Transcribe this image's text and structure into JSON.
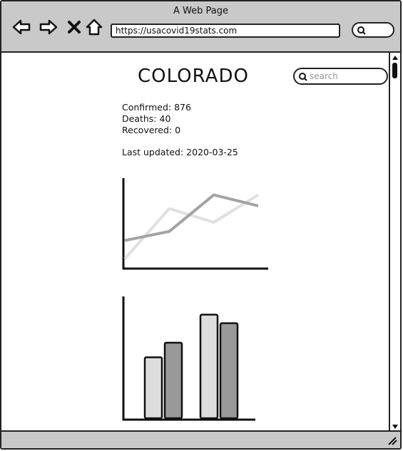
{
  "window": {
    "title": "A Web Page",
    "url": "https://usacovid19stats.com"
  },
  "page": {
    "title": "COLORADO",
    "search_placeholder": "search",
    "confirmed": "Confirmed: 876",
    "deaths": "Deaths: 40",
    "recovered": "Recovered: 0",
    "last_updated": "Last updated: 2020-03-25"
  },
  "icons": {
    "back": "arrow-left-icon",
    "forward": "arrow-right-icon",
    "close": "close-icon",
    "home": "home-icon",
    "search": "search-icon"
  },
  "colors": {
    "frame": "#c9c9c9",
    "series_light": "#e0e0e0",
    "series_dark": "#a3a3a3",
    "bar_light": "#dddddd",
    "bar_dark": "#999999"
  },
  "chart_data": [
    {
      "type": "line",
      "x": [
        1,
        2,
        3,
        4
      ],
      "series": [
        {
          "values": [
            1.0,
            6.5,
            5.0,
            8.0
          ]
        },
        {
          "values": [
            3.0,
            4.0,
            8.0,
            6.8
          ]
        }
      ],
      "ylim": [
        0,
        10
      ]
    },
    {
      "type": "bar",
      "categories": [
        "1",
        "2"
      ],
      "series": [
        {
          "values": [
            5.0,
            8.5
          ]
        },
        {
          "values": [
            6.2,
            7.8
          ]
        }
      ],
      "ylim": [
        0,
        10
      ]
    }
  ]
}
